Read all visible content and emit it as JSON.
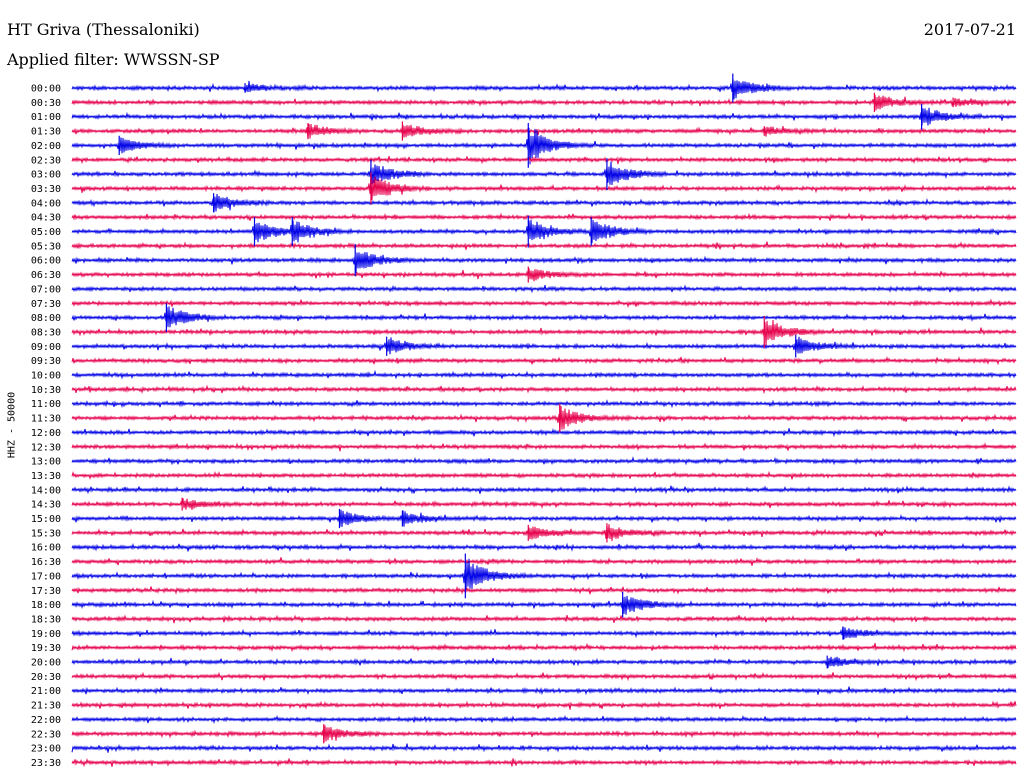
{
  "header": {
    "station": "HT Griva (Thessaloniki)",
    "date": "2017-07-21",
    "filter": "Applied filter: WWSSN-SP"
  },
  "channel_label": "HHZ - 50000",
  "colors": {
    "trace_a": "#0000e6",
    "trace_b": "#e6004c",
    "text": "#000000",
    "background": "#ffffff"
  },
  "chart_data": {
    "type": "line",
    "subtype": "helicorder",
    "title": "HT Griva (Thessaloniki)",
    "date": "2017-07-21",
    "filter": "WWSSN-SP",
    "channel": "HHZ",
    "scale": 50000,
    "row_interval_minutes": 30,
    "row_labels": [
      "00:00",
      "00:30",
      "01:00",
      "01:30",
      "02:00",
      "02:30",
      "03:00",
      "03:30",
      "04:00",
      "04:30",
      "05:00",
      "05:30",
      "06:00",
      "06:30",
      "07:00",
      "07:30",
      "08:00",
      "08:30",
      "09:00",
      "09:30",
      "10:00",
      "10:30",
      "11:00",
      "11:30",
      "12:00",
      "12:30",
      "13:00",
      "13:30",
      "14:00",
      "14:30",
      "15:00",
      "15:30",
      "16:00",
      "16:30",
      "17:00",
      "17:30",
      "18:00",
      "18:30",
      "19:00",
      "19:30",
      "20:00",
      "20:30",
      "21:00",
      "21:30",
      "22:00",
      "22:30",
      "23:00",
      "23:30"
    ],
    "series_colors": [
      "#0000e6",
      "#e6004c"
    ],
    "events": [
      {
        "row": 0,
        "minute": 5.5,
        "amplitude": 0.3
      },
      {
        "row": 0,
        "minute": 21.0,
        "amplitude": 0.9
      },
      {
        "row": 1,
        "minute": 25.5,
        "amplitude": 0.6
      },
      {
        "row": 1,
        "minute": 28.0,
        "amplitude": 0.3
      },
      {
        "row": 2,
        "minute": 27.0,
        "amplitude": 0.8
      },
      {
        "row": 3,
        "minute": 7.5,
        "amplitude": 0.5
      },
      {
        "row": 3,
        "minute": 10.5,
        "amplitude": 0.6
      },
      {
        "row": 3,
        "minute": 22.0,
        "amplitude": 0.3
      },
      {
        "row": 4,
        "minute": 1.5,
        "amplitude": 0.6
      },
      {
        "row": 4,
        "minute": 14.5,
        "amplitude": 1.4
      },
      {
        "row": 6,
        "minute": 9.5,
        "amplitude": 0.9
      },
      {
        "row": 6,
        "minute": 17.0,
        "amplitude": 1.0
      },
      {
        "row": 7,
        "minute": 9.5,
        "amplitude": 1.0
      },
      {
        "row": 8,
        "minute": 4.5,
        "amplitude": 0.6
      },
      {
        "row": 10,
        "minute": 5.8,
        "amplitude": 0.9
      },
      {
        "row": 10,
        "minute": 7.0,
        "amplitude": 0.9
      },
      {
        "row": 10,
        "minute": 14.5,
        "amplitude": 1.0
      },
      {
        "row": 10,
        "minute": 16.5,
        "amplitude": 0.9
      },
      {
        "row": 12,
        "minute": 9.0,
        "amplitude": 1.0
      },
      {
        "row": 13,
        "minute": 14.5,
        "amplitude": 0.5
      },
      {
        "row": 16,
        "minute": 3.0,
        "amplitude": 0.9
      },
      {
        "row": 17,
        "minute": 22.0,
        "amplitude": 1.0
      },
      {
        "row": 18,
        "minute": 10.0,
        "amplitude": 0.6
      },
      {
        "row": 18,
        "minute": 23.0,
        "amplitude": 0.7
      },
      {
        "row": 23,
        "minute": 15.5,
        "amplitude": 0.9
      },
      {
        "row": 29,
        "minute": 3.5,
        "amplitude": 0.4
      },
      {
        "row": 30,
        "minute": 8.5,
        "amplitude": 0.6
      },
      {
        "row": 30,
        "minute": 10.5,
        "amplitude": 0.5
      },
      {
        "row": 31,
        "minute": 14.5,
        "amplitude": 0.5
      },
      {
        "row": 31,
        "minute": 17.0,
        "amplitude": 0.6
      },
      {
        "row": 34,
        "minute": 12.5,
        "amplitude": 1.4
      },
      {
        "row": 36,
        "minute": 17.5,
        "amplitude": 0.8
      },
      {
        "row": 38,
        "minute": 24.5,
        "amplitude": 0.4
      },
      {
        "row": 40,
        "minute": 24.0,
        "amplitude": 0.4
      },
      {
        "row": 45,
        "minute": 8.0,
        "amplitude": 0.6
      }
    ]
  }
}
